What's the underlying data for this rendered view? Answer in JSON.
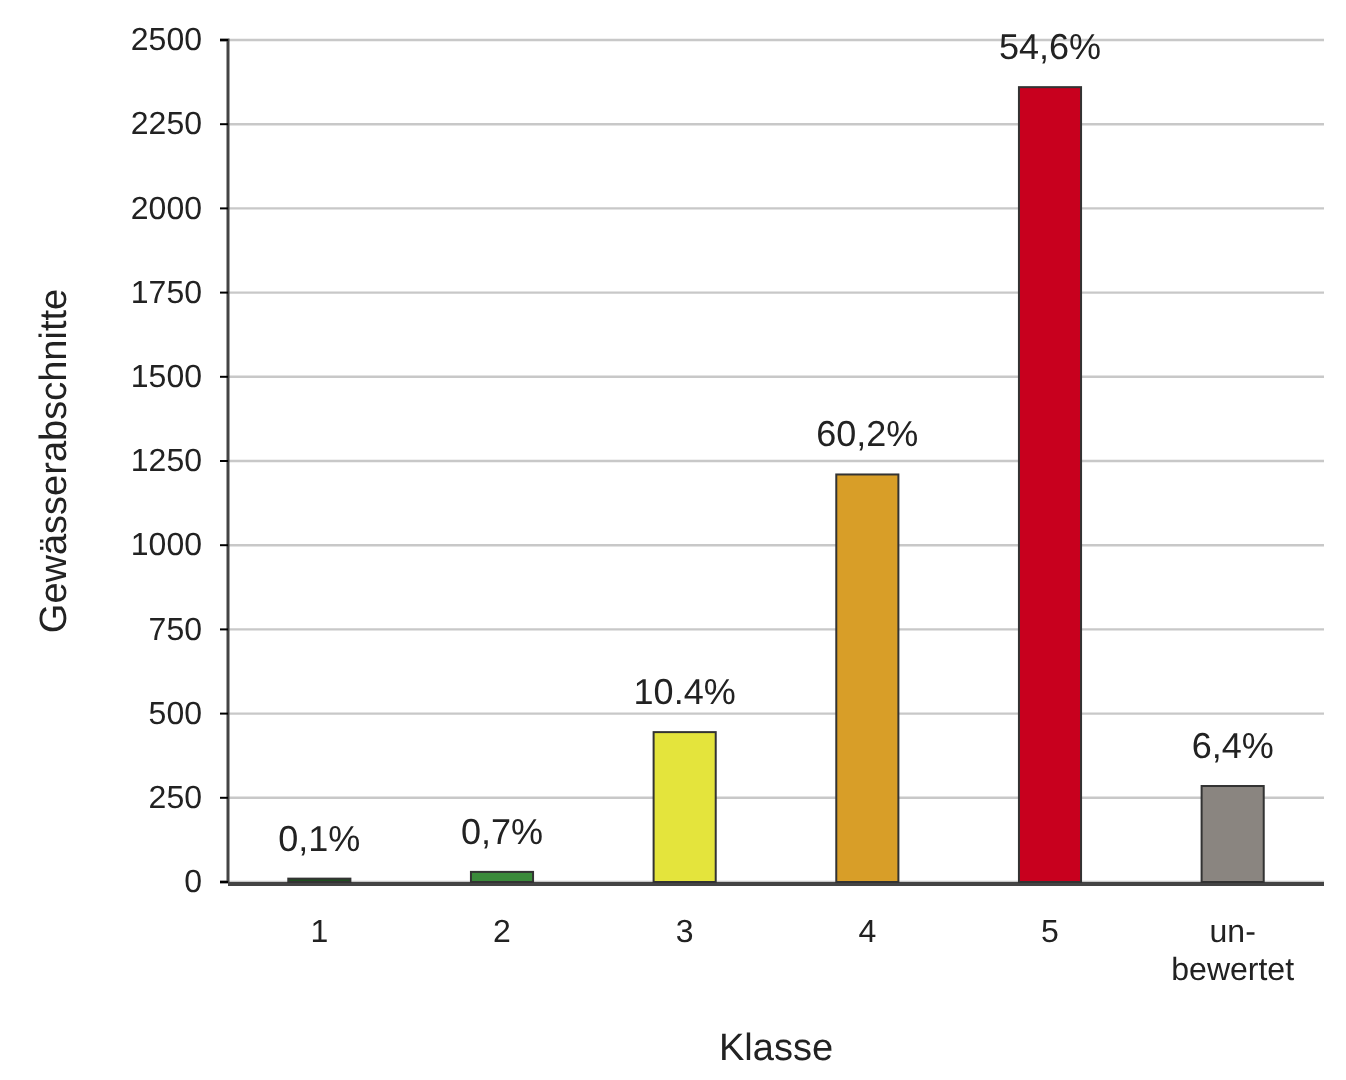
{
  "chart_data": {
    "type": "bar",
    "xlabel": "Klasse",
    "ylabel": "Gewässerabschnitte",
    "categories": [
      "1",
      "2",
      "3",
      "4",
      "5",
      "un-\nbewertet"
    ],
    "values": [
      10,
      30,
      445,
      1210,
      2360,
      285
    ],
    "colors": [
      "#1f4f1f",
      "#3a8a3a",
      "#e4e43c",
      "#d89e28",
      "#c8001e",
      "#8a8580"
    ],
    "annotations": [
      {
        "text": "0,1%",
        "x": "1",
        "y": 10
      },
      {
        "text": "0,7%",
        "x": "2",
        "y": 30
      },
      {
        "text": "10.4%",
        "x": "3",
        "y": 445
      },
      {
        "text": "60,2%",
        "x": "4",
        "y": 1210
      },
      {
        "text": "54,6%",
        "x": "5",
        "y": 2360
      },
      {
        "text": "6,4%",
        "x": "un-\nbewertet",
        "y": 285
      }
    ],
    "ylim": [
      0,
      2500
    ],
    "yticks": [
      0,
      250,
      500,
      750,
      1000,
      1250,
      1500,
      1750,
      2000,
      2250,
      2500
    ],
    "grid": "y"
  }
}
